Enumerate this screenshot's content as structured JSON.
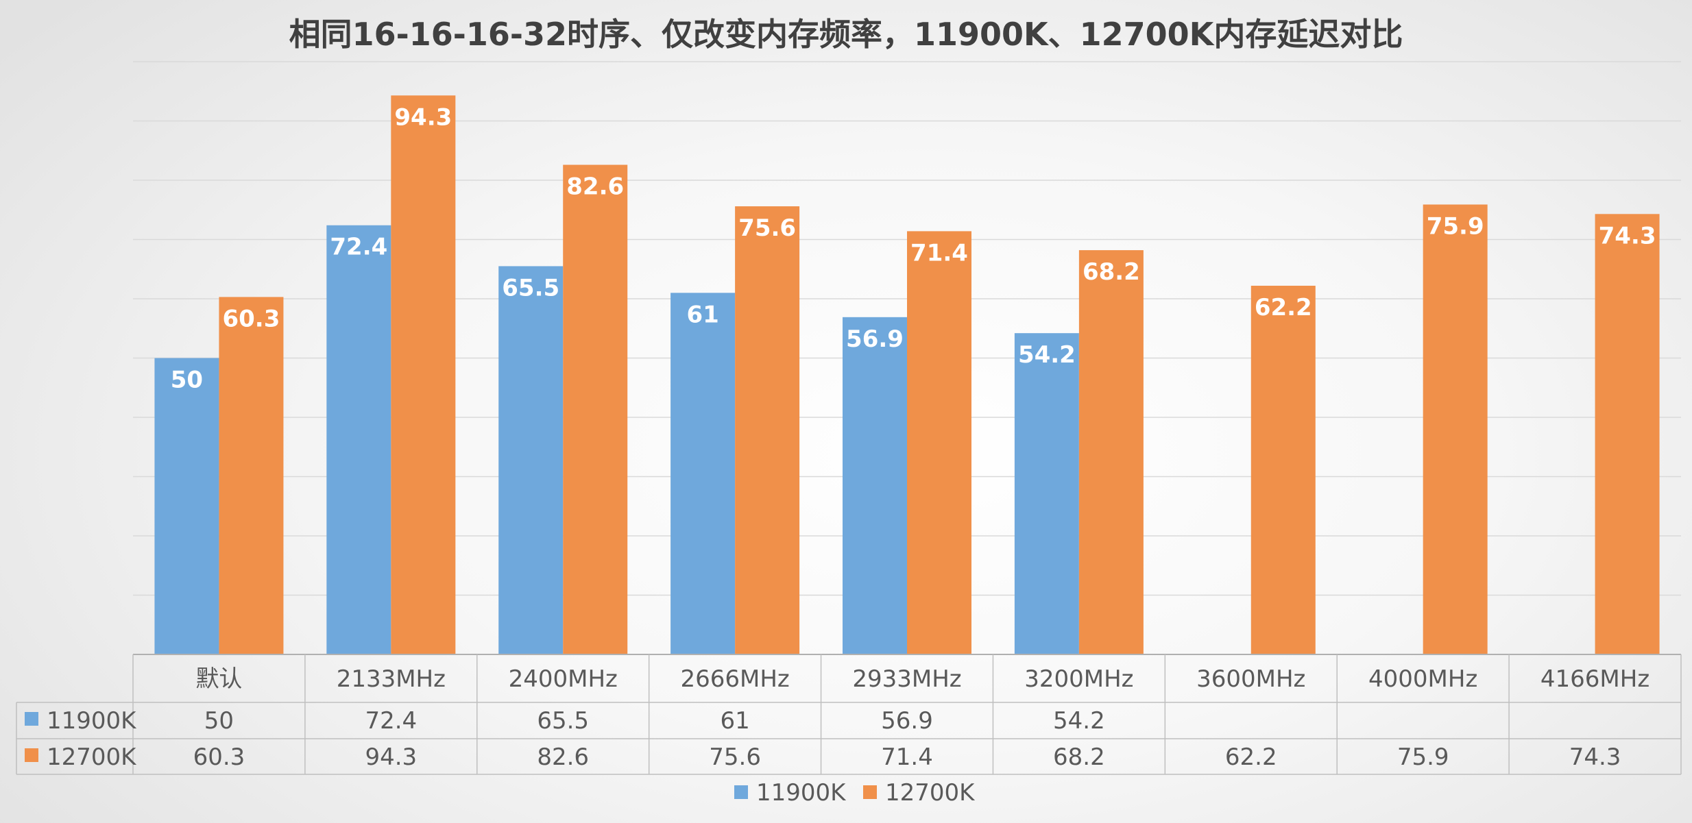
{
  "chart_data": {
    "type": "bar",
    "title": "相同16-16-16-32时序、仅改变内存频率，11900K、12700K内存延迟对比",
    "categories": [
      "默认",
      "2133MHz",
      "2400MHz",
      "2666MHz",
      "2933MHz",
      "3200MHz",
      "3600MHz",
      "4000MHz",
      "4166MHz"
    ],
    "series": [
      {
        "name": "11900K",
        "color": "#6FA8DC",
        "values": [
          50,
          72.4,
          65.5,
          61,
          56.9,
          54.2,
          null,
          null,
          null
        ]
      },
      {
        "name": "12700K",
        "color": "#F0904A",
        "values": [
          60.3,
          94.3,
          82.6,
          75.6,
          71.4,
          68.2,
          62.2,
          75.9,
          74.3
        ]
      }
    ],
    "ylim": [
      0,
      100
    ],
    "grid": true,
    "data_table": true,
    "legend": "bottom",
    "xlabel": "",
    "ylabel": ""
  }
}
